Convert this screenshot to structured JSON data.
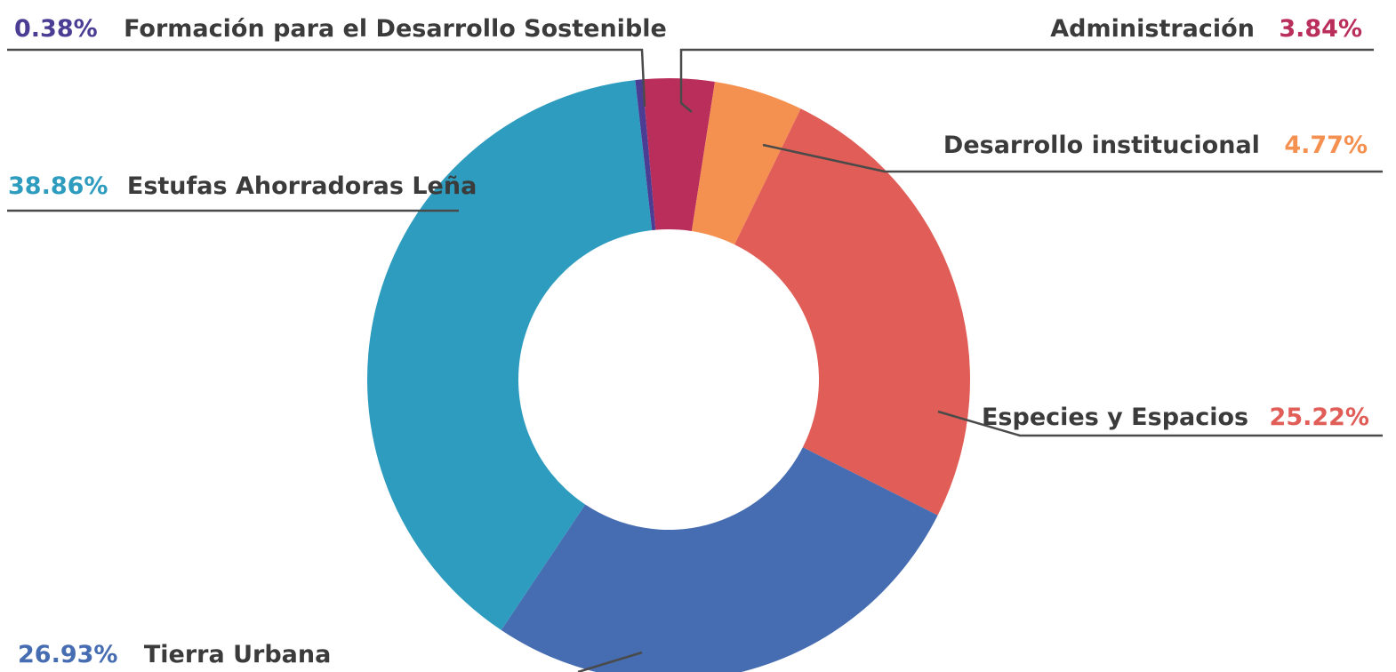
{
  "chart_data": {
    "type": "pie",
    "donut": true,
    "start_angle_deg": -5,
    "slices": [
      {
        "label": "Administración",
        "value": 3.84,
        "display": "3.84%",
        "color": "#ba2e5c"
      },
      {
        "label": "Desarrollo institucional",
        "value": 4.77,
        "display": "4.77%",
        "color": "#f59150"
      },
      {
        "label": "Especies y Espacios",
        "value": 25.22,
        "display": "25.22%",
        "color": "#e05e57"
      },
      {
        "label": "Tierra Urbana",
        "value": 26.93,
        "display": "26.93%",
        "color": "#466db1"
      },
      {
        "label": "Estufas Ahorradoras Leña",
        "value": 38.86,
        "display": "38.86%",
        "color": "#2e9cbf"
      },
      {
        "label": "Formación para el Desarrollo Sostenible",
        "value": 0.38,
        "display": "0.38%",
        "color": "#4b3d94"
      }
    ]
  }
}
